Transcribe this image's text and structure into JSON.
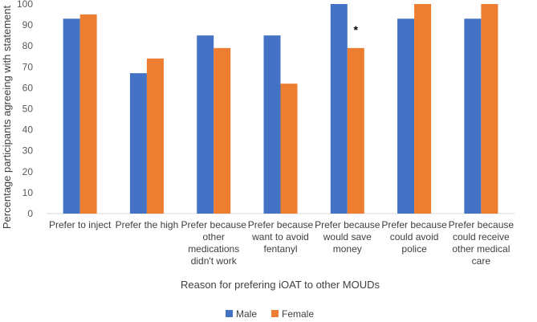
{
  "chart_data": {
    "type": "bar",
    "title": "",
    "xlabel": "Reason for prefering iOAT to other MOUDs",
    "ylabel": "Percentage participants agreeing with statement",
    "ylim": [
      0,
      100
    ],
    "yticks": [
      0,
      10,
      20,
      30,
      40,
      50,
      60,
      70,
      80,
      90,
      100
    ],
    "grid": false,
    "legend_position": "bottom",
    "categories": [
      [
        "Prefer to inject"
      ],
      [
        "Prefer the high"
      ],
      [
        "Prefer because",
        "other",
        "medications",
        "didn't work"
      ],
      [
        "Prefer because",
        "want to avoid",
        "fentanyl"
      ],
      [
        "Prefer because",
        "would save",
        "money"
      ],
      [
        "Prefer because",
        "could avoid",
        "police"
      ],
      [
        "Prefer because",
        "could receive",
        "other medical",
        "care"
      ]
    ],
    "series": [
      {
        "name": "Male",
        "color": "#4472C4",
        "values": [
          93,
          67,
          85,
          85,
          100,
          93,
          93
        ]
      },
      {
        "name": "Female",
        "color": "#ED7D31",
        "values": [
          95,
          74,
          79,
          62,
          79,
          100,
          100
        ]
      }
    ],
    "annotations": [
      {
        "text": "*",
        "category_index": 4,
        "series_index": 1
      }
    ]
  }
}
